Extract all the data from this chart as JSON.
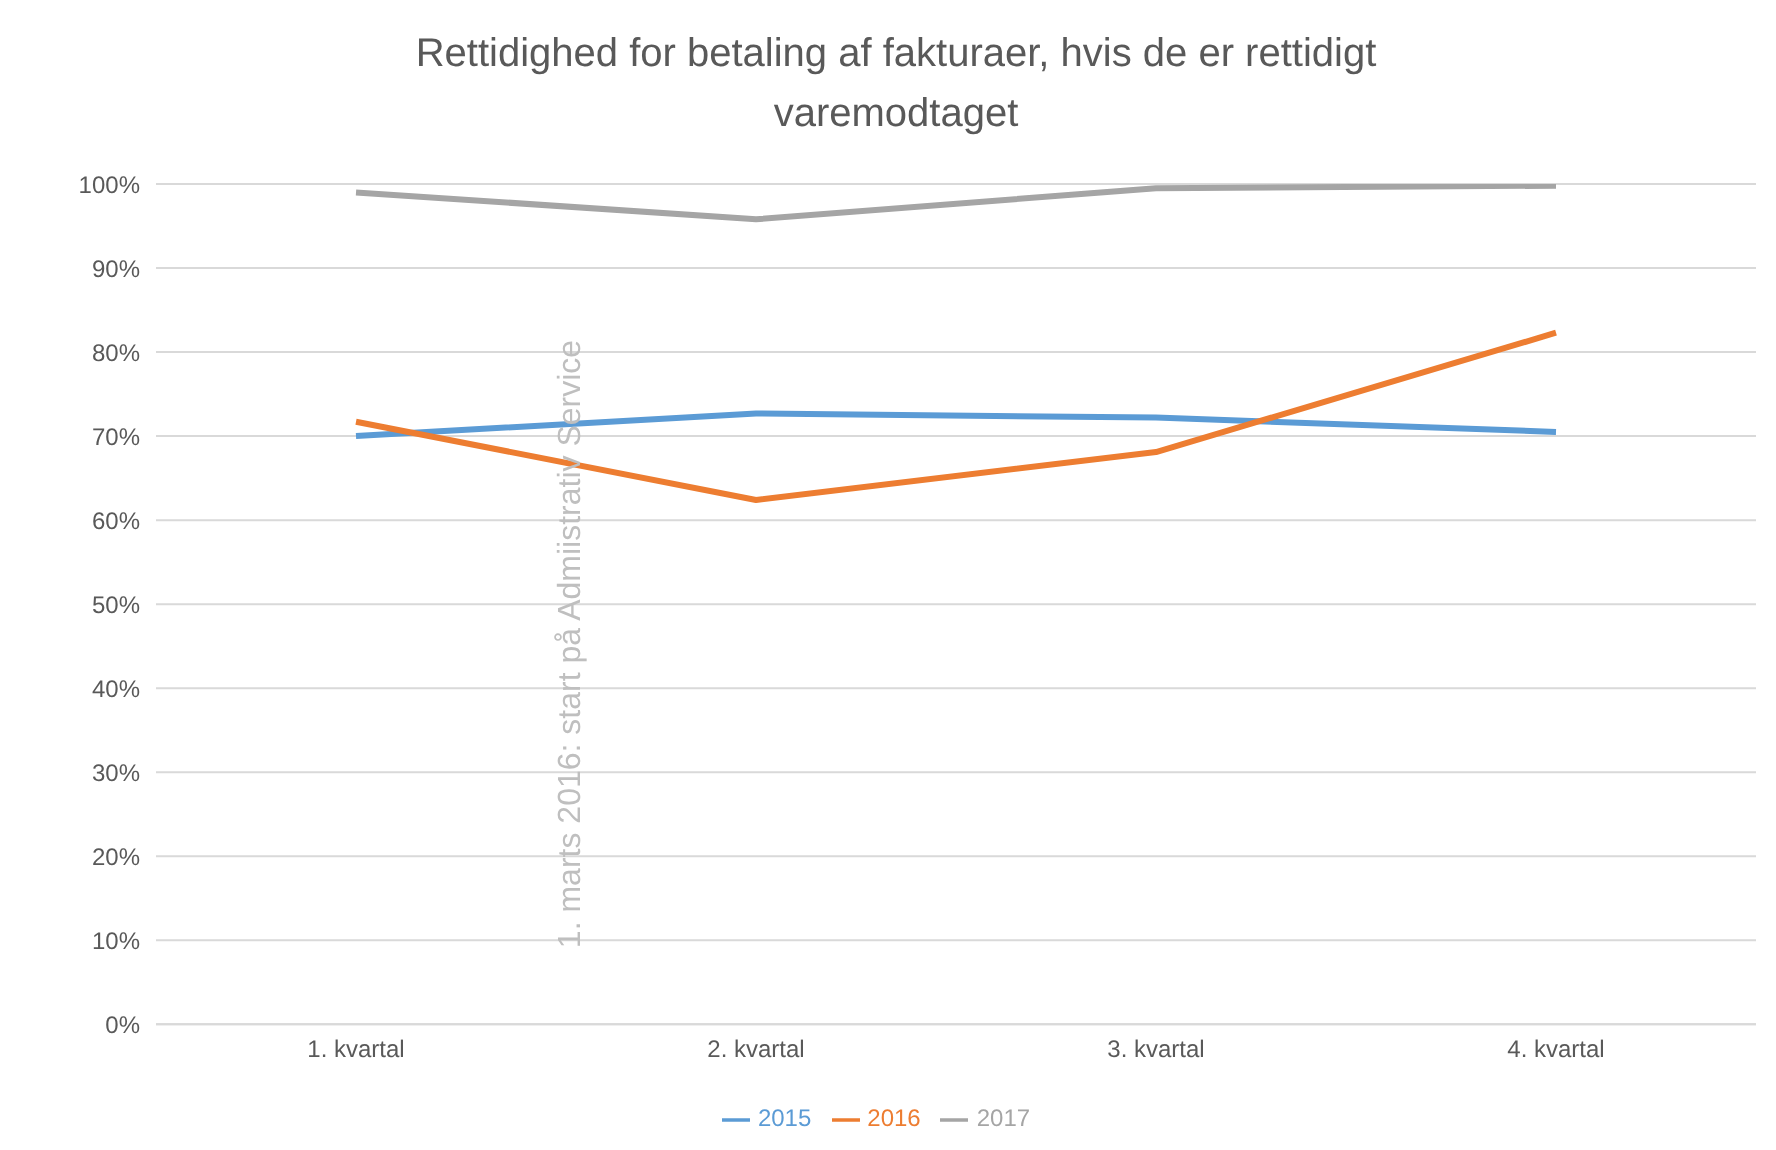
{
  "chart_data": {
    "type": "line",
    "title": "Rettidighed for betaling af fakturaer, hvis de er rettidigt varemodtaget",
    "categories": [
      "1. kvartal",
      "2. kvartal",
      "3. kvartal",
      "4. kvartal"
    ],
    "series": [
      {
        "name": "2015",
        "color": "#5b9bd5",
        "values": [
          70.0,
          72.7,
          72.2,
          70.5
        ]
      },
      {
        "name": "2016",
        "color": "#ed7d31",
        "values": [
          71.7,
          62.4,
          68.1,
          82.3
        ]
      },
      {
        "name": "2017",
        "color": "#a5a5a5",
        "values": [
          99.0,
          95.8,
          99.5,
          99.8
        ]
      }
    ],
    "ylim": [
      0,
      100
    ],
    "yticks": [
      {
        "value": 0,
        "label": "0%"
      },
      {
        "value": 10,
        "label": "10%"
      },
      {
        "value": 20,
        "label": "20%"
      },
      {
        "value": 30,
        "label": "30%"
      },
      {
        "value": 40,
        "label": "40%"
      },
      {
        "value": 50,
        "label": "50%"
      },
      {
        "value": 60,
        "label": "60%"
      },
      {
        "value": 70,
        "label": "70%"
      },
      {
        "value": 80,
        "label": "80%"
      },
      {
        "value": 90,
        "label": "90%"
      },
      {
        "value": 100,
        "label": "100%"
      }
    ],
    "grid": "y",
    "legend": "bottom",
    "marker": "none",
    "line_style": "solid",
    "annotations": [
      "1. marts 2016: start på Admiistrativ Service"
    ]
  }
}
